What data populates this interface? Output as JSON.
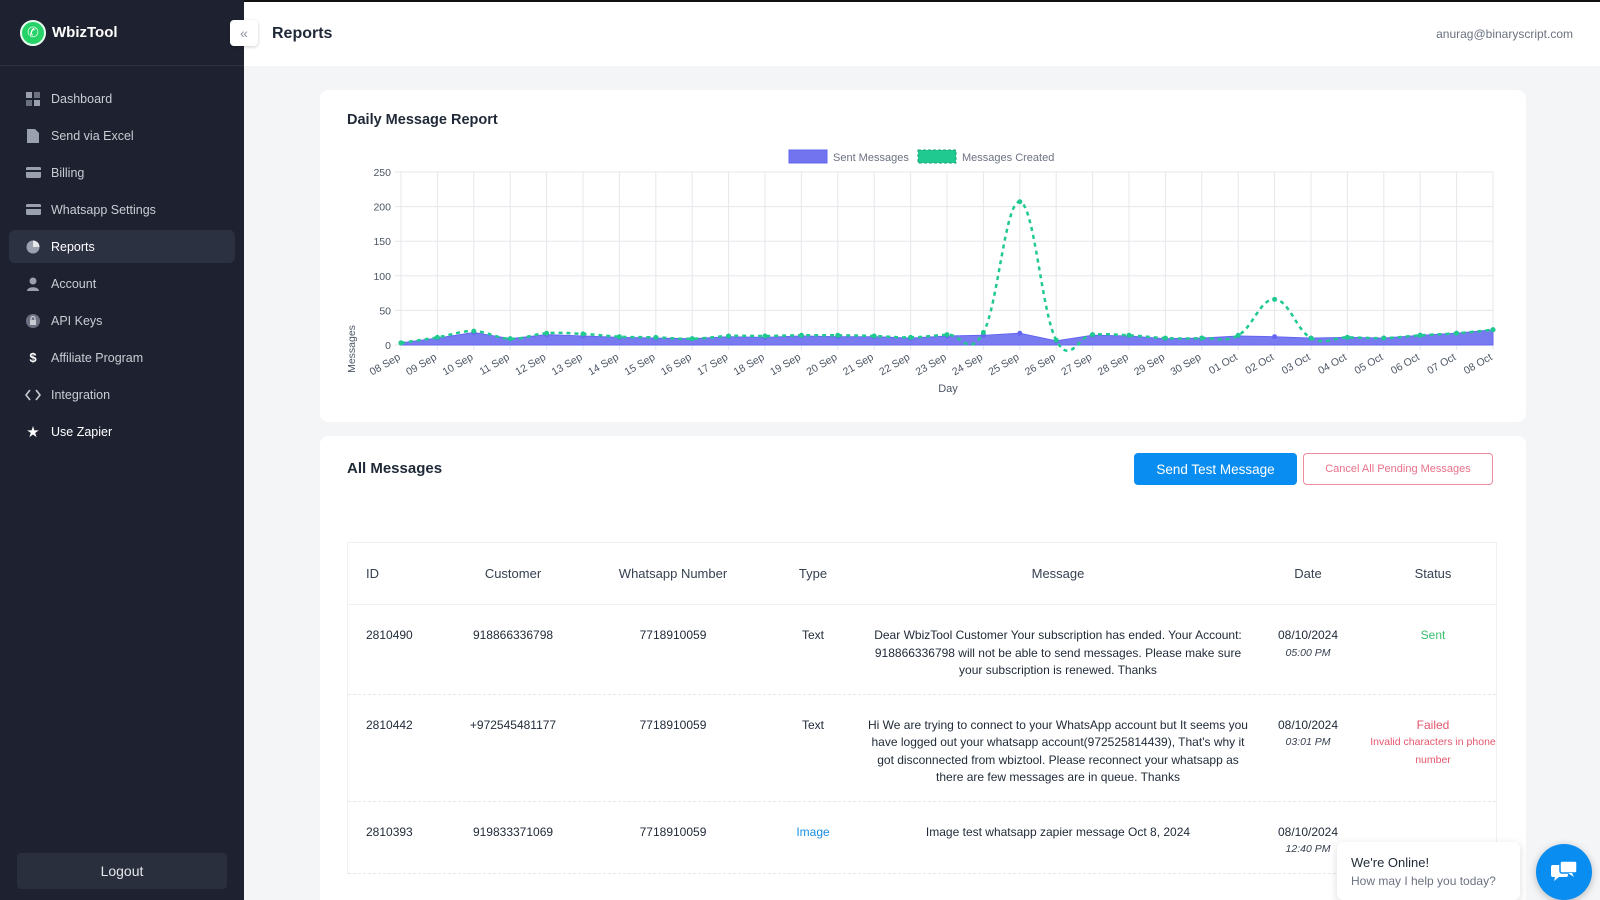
{
  "brand": {
    "name": "WbizTool",
    "logo_icon": "whatsapp-icon"
  },
  "sidebar": {
    "collapse_label": "«",
    "items": [
      {
        "label": "Dashboard",
        "icon": "dashboard-icon"
      },
      {
        "label": "Send via Excel",
        "icon": "file-icon"
      },
      {
        "label": "Billing",
        "icon": "card-icon"
      },
      {
        "label": "Whatsapp Settings",
        "icon": "card-icon"
      },
      {
        "label": "Reports",
        "icon": "pie-chart-icon",
        "active": true
      },
      {
        "label": "Account",
        "icon": "user-icon"
      },
      {
        "label": "API Keys",
        "icon": "lock-icon"
      },
      {
        "label": "Affiliate Program",
        "icon": "dollar-icon"
      },
      {
        "label": "Integration",
        "icon": "code-icon"
      },
      {
        "label": "Use Zapier",
        "icon": "star-icon"
      }
    ],
    "logout_label": "Logout"
  },
  "header": {
    "title": "Reports",
    "user_email": "anurag@binaryscript.com"
  },
  "chart_card": {
    "title": "Daily Message Report"
  },
  "chart_data": {
    "type": "line",
    "title": "",
    "xlabel": "Day",
    "ylabel": "Messages",
    "ylim": [
      0,
      250
    ],
    "yticks": [
      0,
      50,
      100,
      150,
      200,
      250
    ],
    "grid": true,
    "legend_position": "top-center",
    "categories": [
      "08 Sep",
      "09 Sep",
      "10 Sep",
      "11 Sep",
      "12 Sep",
      "13 Sep",
      "14 Sep",
      "15 Sep",
      "16 Sep",
      "17 Sep",
      "18 Sep",
      "19 Sep",
      "20 Sep",
      "21 Sep",
      "22 Sep",
      "23 Sep",
      "24 Sep",
      "25 Sep",
      "26 Sep",
      "27 Sep",
      "28 Sep",
      "29 Sep",
      "30 Sep",
      "01 Oct",
      "02 Oct",
      "03 Oct",
      "04 Oct",
      "05 Oct",
      "06 Oct",
      "07 Oct",
      "08 Oct"
    ],
    "series": [
      {
        "name": "Sent Messages",
        "style": "area",
        "color": "#7174ee",
        "values": [
          3,
          10,
          18,
          9,
          15,
          13,
          11,
          10,
          9,
          12,
          11,
          13,
          12,
          12,
          10,
          13,
          14,
          17,
          6,
          14,
          13,
          9,
          10,
          13,
          12,
          10,
          11,
          10,
          14,
          17,
          22
        ]
      },
      {
        "name": "Messages Created",
        "style": "dashed-line",
        "color": "#1fc98f",
        "values": [
          3,
          11,
          20,
          9,
          17,
          16,
          12,
          11,
          9,
          13,
          13,
          14,
          14,
          13,
          11,
          15,
          18,
          207,
          7,
          15,
          14,
          10,
          10,
          14,
          66,
          10,
          11,
          10,
          14,
          17,
          22
        ]
      }
    ]
  },
  "messages": {
    "title": "All Messages",
    "send_test_label": "Send Test Message",
    "cancel_pending_label": "Cancel All Pending Messages",
    "columns": [
      "ID",
      "Customer",
      "Whatsapp Number",
      "Type",
      "Message",
      "Date",
      "Status"
    ],
    "rows": [
      {
        "id": "2810490",
        "customer": "918866336798",
        "number": "7718910059",
        "type": "Text",
        "message": "Dear WbizTool Customer Your subscription has ended. Your Account: 918866336798 will not be able to send messages. Please make sure your subscription is renewed. Thanks",
        "date": "08/10/2024",
        "time": "05:00 PM",
        "status": "Sent",
        "status_reason": ""
      },
      {
        "id": "2810442",
        "customer": "+972545481177",
        "number": "7718910059",
        "type": "Text",
        "message": "Hi We are trying to connect to your WhatsApp account but It seems you have logged out your whatsapp account(972525814439), That's why it got disconnected from wbiztool. Please reconnect your whatsapp as there are few messages are in queue. Thanks",
        "date": "08/10/2024",
        "time": "03:01 PM",
        "status": "Failed",
        "status_reason": "Invalid characters in phone number"
      },
      {
        "id": "2810393",
        "customer": "919833371069",
        "number": "7718910059",
        "type": "Image",
        "message": "Image test whatsapp zapier message Oct 8, 2024",
        "date": "08/10/2024",
        "time": "12:40 PM",
        "status": "",
        "status_reason": ""
      }
    ]
  },
  "chat_widget": {
    "title": "We're Online!",
    "subtitle": "How may I help you today?",
    "icon": "chat-icon"
  }
}
